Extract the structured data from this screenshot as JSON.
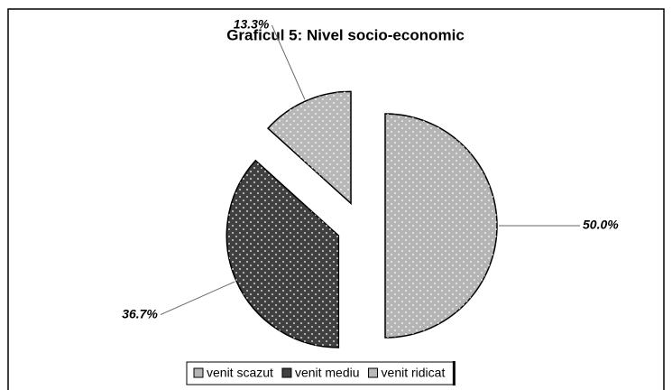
{
  "chart_data": {
    "type": "pie",
    "title": "Graficul 5: Nivel socio-economic",
    "categories": [
      "venit scazut",
      "venit mediu",
      "venit ridicat"
    ],
    "values": [
      50.0,
      36.7,
      13.3
    ],
    "value_labels": [
      "50.0%",
      "36.7%",
      "13.3%"
    ],
    "colors": [
      "#b4b4b4",
      "#404040",
      "#b8b8b8"
    ],
    "legend": "bottom"
  }
}
